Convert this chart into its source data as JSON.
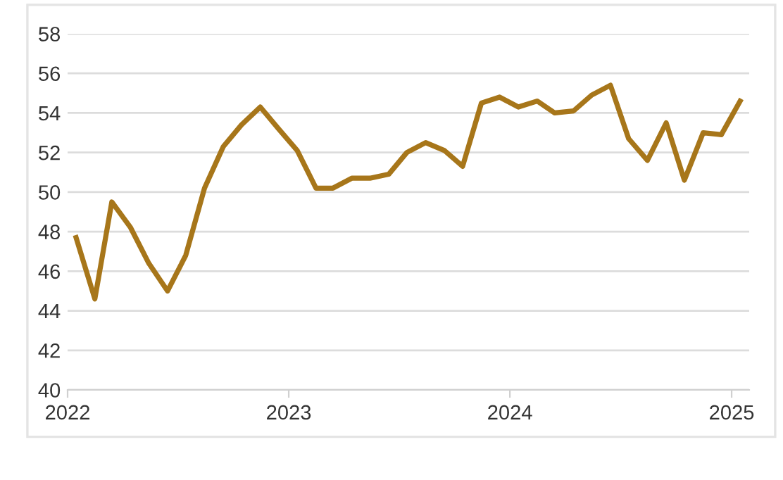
{
  "chart_data": {
    "type": "line",
    "x": [
      "2022-01-15",
      "2022-02-15",
      "2022-03-15",
      "2022-04-15",
      "2022-05-15",
      "2022-06-15",
      "2022-07-15",
      "2022-08-15",
      "2022-09-15",
      "2022-10-15",
      "2022-11-15",
      "2022-12-15",
      "2023-01-15",
      "2023-02-15",
      "2023-03-15",
      "2023-04-15",
      "2023-05-15",
      "2023-06-15",
      "2023-07-15",
      "2023-08-15",
      "2023-09-15",
      "2023-10-15",
      "2023-11-15",
      "2023-12-15",
      "2024-01-15",
      "2024-02-15",
      "2024-03-15",
      "2024-04-15",
      "2024-05-15",
      "2024-06-15",
      "2024-07-15",
      "2024-08-15",
      "2024-09-15",
      "2024-10-15",
      "2024-11-15",
      "2024-12-15",
      "2025-01-15"
    ],
    "series": [
      {
        "color": "#a7761a",
        "values": [
          47.7,
          44.6,
          49.5,
          48.2,
          46.4,
          45.0,
          46.8,
          50.2,
          52.3,
          53.4,
          54.3,
          53.2,
          52.1,
          50.2,
          50.2,
          50.7,
          50.7,
          50.9,
          52.0,
          52.5,
          52.1,
          51.3,
          54.5,
          54.8,
          54.3,
          54.6,
          54.0,
          54.1,
          54.9,
          55.4,
          52.7,
          51.6,
          53.5,
          50.6,
          53.0,
          52.9,
          54.6
        ]
      }
    ],
    "xlim": [
      "2022-01-01",
      "2025-01-30"
    ],
    "xticks": [
      {
        "value": "2022-01-01",
        "label": "2022"
      },
      {
        "value": "2023-01-01",
        "label": "2023"
      },
      {
        "value": "2024-01-01",
        "label": "2024"
      },
      {
        "value": "2025-01-01",
        "label": "2025"
      }
    ],
    "ylim": [
      40,
      58
    ],
    "yticks": [
      40,
      42,
      44,
      46,
      48,
      50,
      52,
      54,
      56,
      58
    ],
    "grid": "y",
    "marker": "none",
    "line_style": "solid",
    "legend": false
  }
}
